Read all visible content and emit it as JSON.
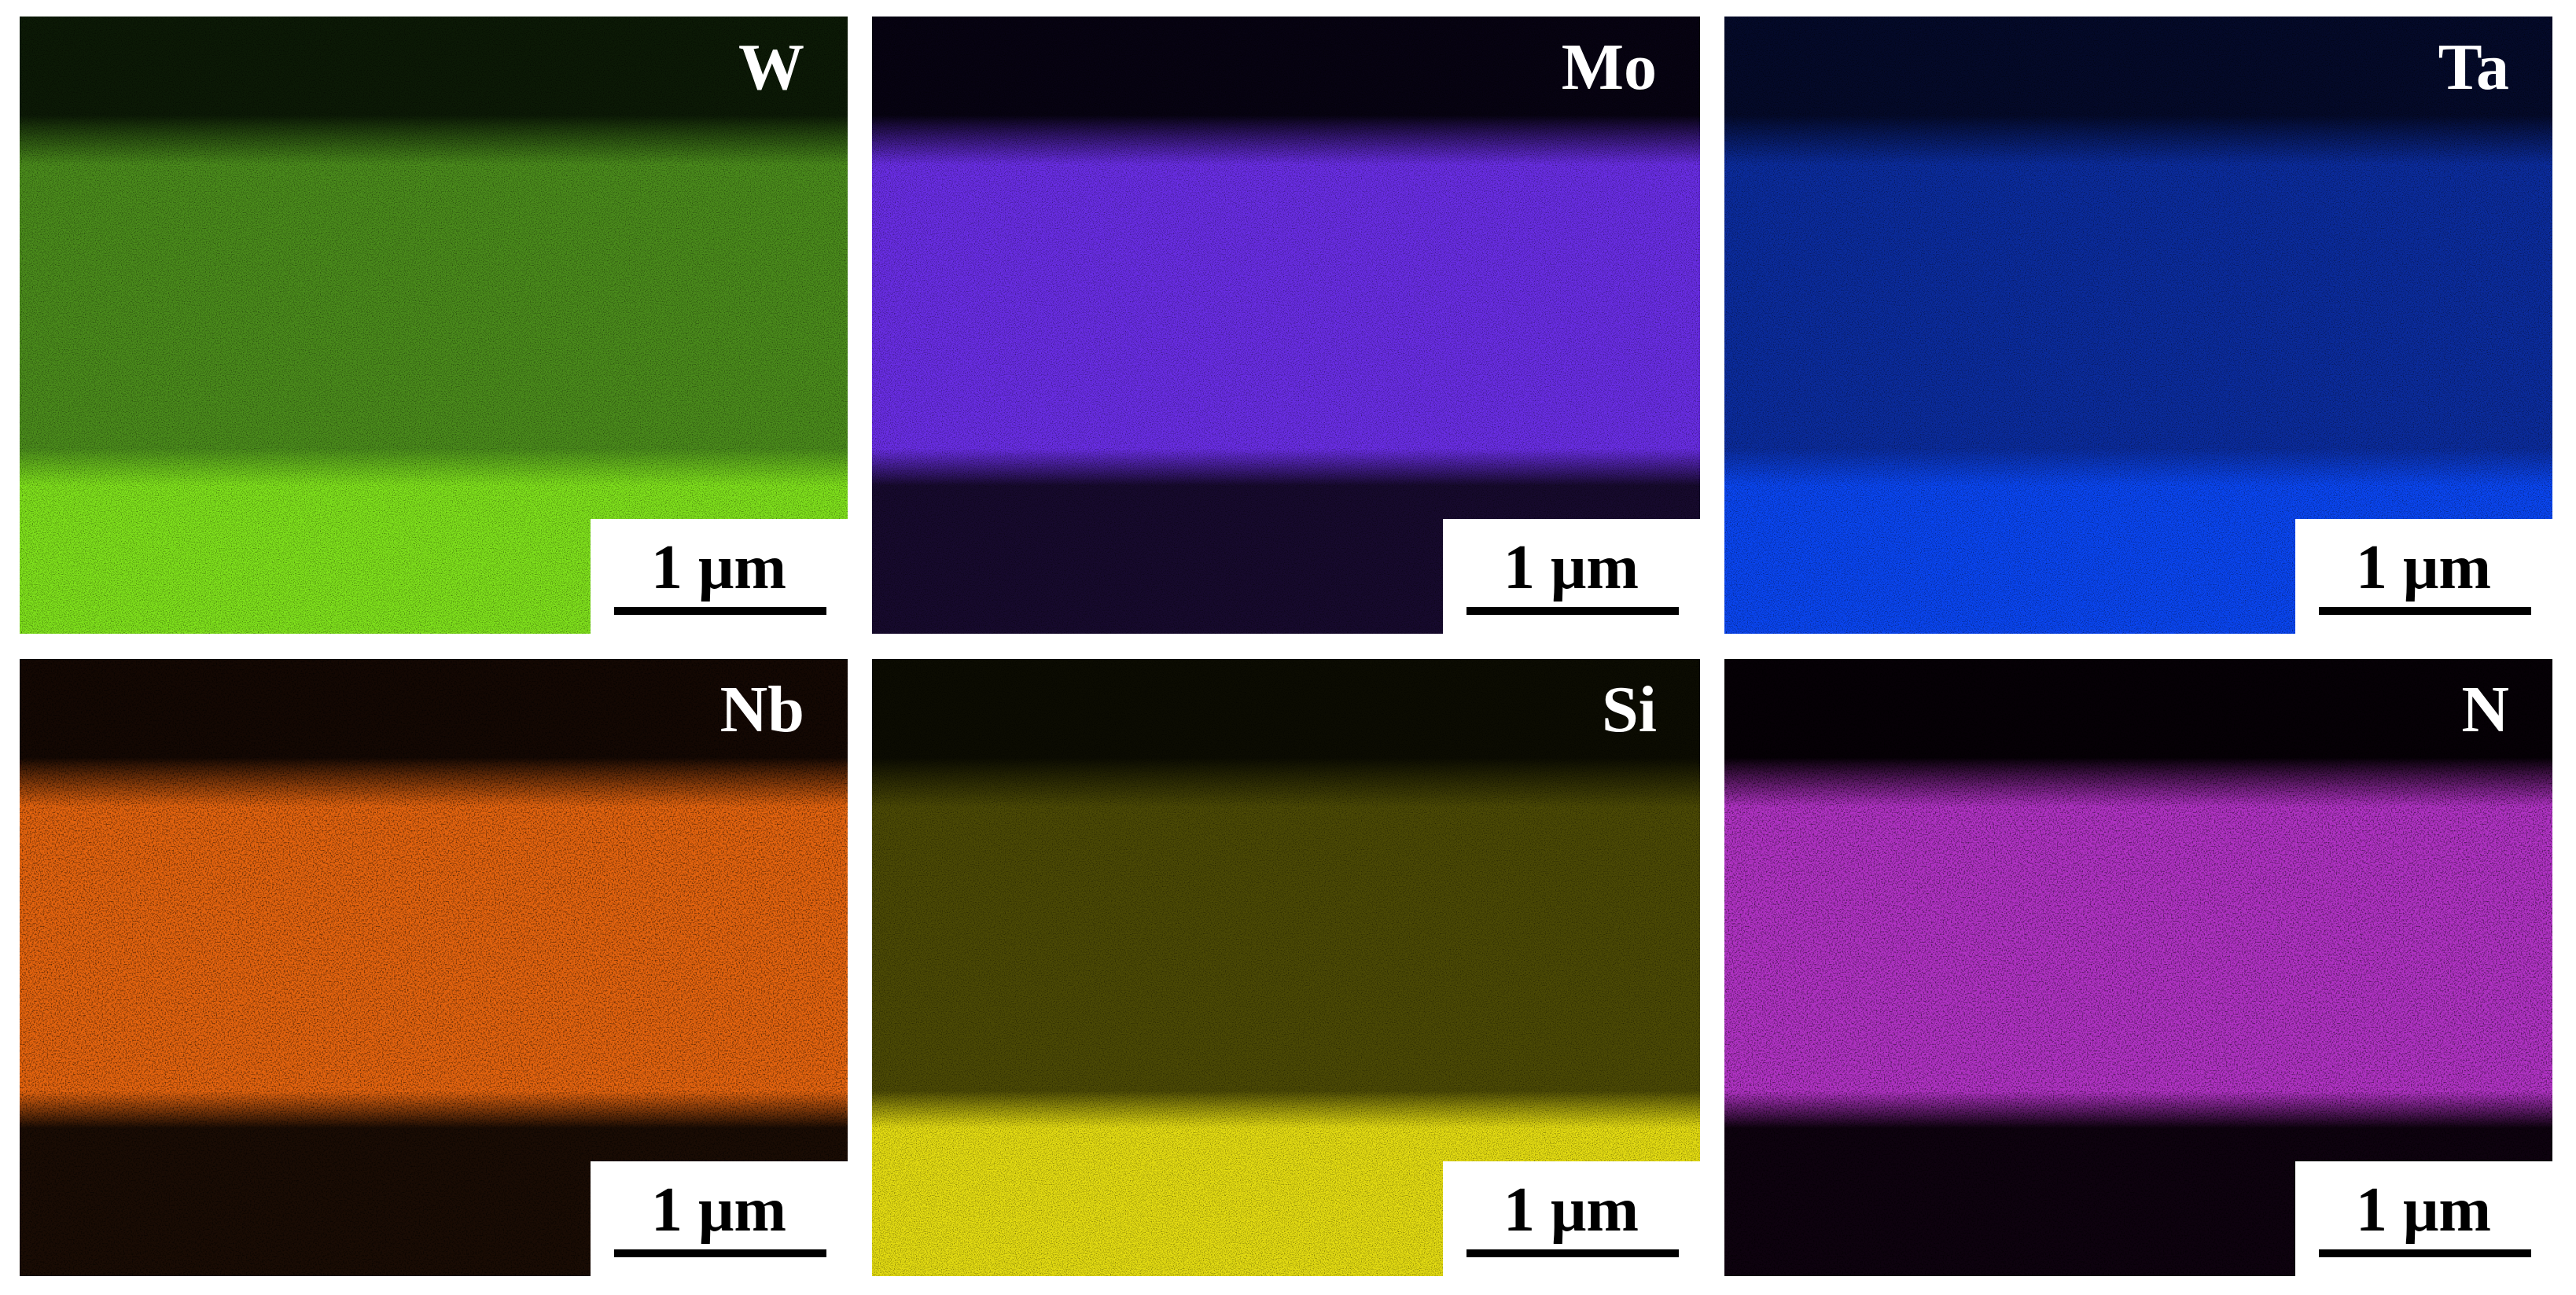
{
  "panels": [
    {
      "label": "W",
      "scale_bar": "1 μm"
    },
    {
      "label": "Mo",
      "scale_bar": "1 μm"
    },
    {
      "label": "Ta",
      "scale_bar": "1 μm"
    },
    {
      "label": "Nb",
      "scale_bar": "1 μm"
    },
    {
      "label": "Si",
      "scale_bar": "1 μm"
    },
    {
      "label": "N",
      "scale_bar": "1 μm"
    }
  ]
}
